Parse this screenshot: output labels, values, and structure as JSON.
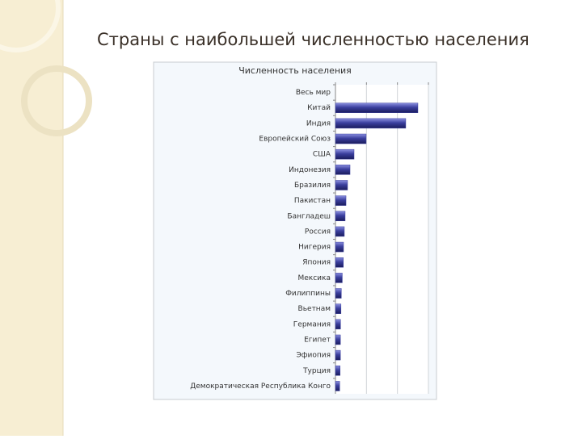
{
  "slide_title": "Страны с наибольшей численностью населения",
  "chart_data": {
    "type": "bar",
    "orientation": "horizontal",
    "title": "Численность населения",
    "categories": [
      "Весь мир",
      "Китай",
      "Индия",
      "Европейский Союз",
      "США",
      "Индонезия",
      "Бразилия",
      "Пакистан",
      "Бангладеш",
      "Россия",
      "Нигерия",
      "Япония",
      "Мексика",
      "Филиппины",
      "Вьетнам",
      "Германия",
      "Египет",
      "Эфиопия",
      "Турция",
      "Демократическая Республика Конго"
    ],
    "values": [
      null,
      1330,
      1134,
      495,
      300,
      235,
      195,
      170,
      156,
      143,
      130,
      127,
      110,
      95,
      89,
      82,
      80,
      80,
      75,
      68
    ],
    "color": "#3b3f9e",
    "xlim": [
      0,
      1500
    ],
    "xticks": [
      0,
      500,
      1000,
      1500
    ],
    "grid": true
  }
}
